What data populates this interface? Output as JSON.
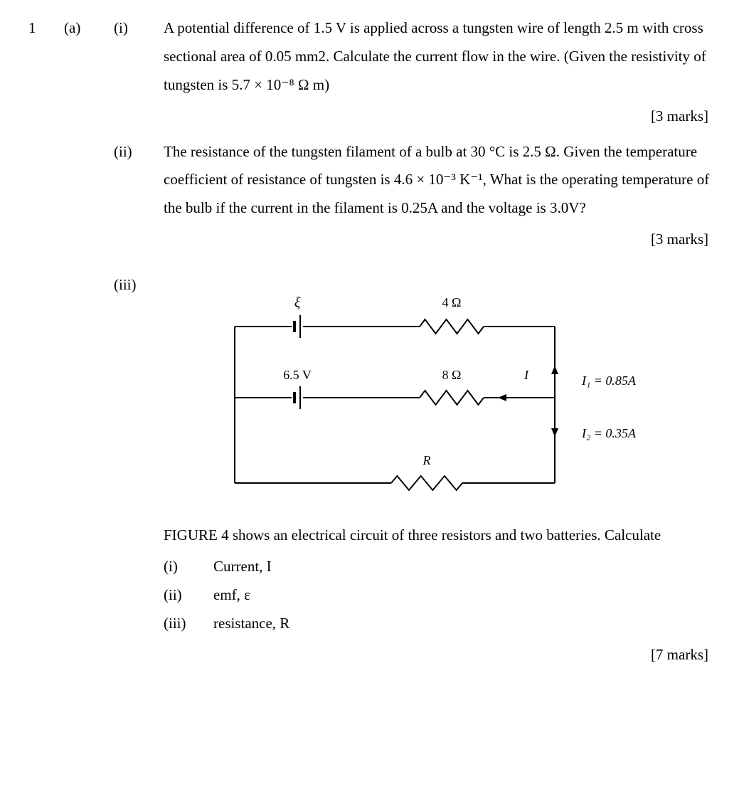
{
  "question_number": "1",
  "part_label": "(a)",
  "items": {
    "i": {
      "label": "(i)",
      "text_html": "A potential difference of 1.5 V is applied across a tungsten wire of length 2.5 m with cross sectional area of 0.05 mm2. Calculate the current flow in the wire. (Given the resistivity of tungsten is 5.7 × 10⁻⁸ Ω m)",
      "marks": "[3 marks]"
    },
    "ii": {
      "label": "(ii)",
      "text_html": "The resistance of the tungsten filament of a bulb at 30 °C is 2.5 Ω. Given the temperature coefficient of resistance of tungsten is 4.6 × 10⁻³ K⁻¹, What is the operating temperature of the bulb if the current in the filament is 0.25A and the voltage is 3.0V?",
      "marks": "[3 marks]"
    },
    "iii": {
      "label": "(iii)",
      "caption": "FIGURE 4 shows an electrical circuit of three resistors and two batteries. Calculate",
      "subs": {
        "a": {
          "label": "(i)",
          "text": "Current, I"
        },
        "b": {
          "label": "(ii)",
          "text": "emf, ε"
        },
        "c": {
          "label": "(iii)",
          "text": "resistance, R"
        }
      },
      "marks": "[7 marks]"
    }
  },
  "circuit": {
    "type": "circuit-diagram",
    "stroke": "#000000",
    "stroke_width": 2,
    "font_family": "Times New Roman",
    "label_fontsize": 18,
    "italic_fontsize": 18,
    "labels": {
      "emf_top": "ξ",
      "r_top": "4 Ω",
      "emf_mid": "6.5 V",
      "r_mid": "8 Ω",
      "i_mid": "I",
      "r_bot": "R",
      "i1": "I₁ = 0.85A",
      "i2": "I₂ = 0.35A"
    },
    "geometry_note": "Three horizontal branches between two vertical rails; top branch: battery ξ + 4Ω resistor; middle branch: 6.5V battery + 8Ω resistor with current I leftward; bottom branch: resistor R. Right rail shows I1 entering node (up) and I2 leaving node (down)."
  }
}
